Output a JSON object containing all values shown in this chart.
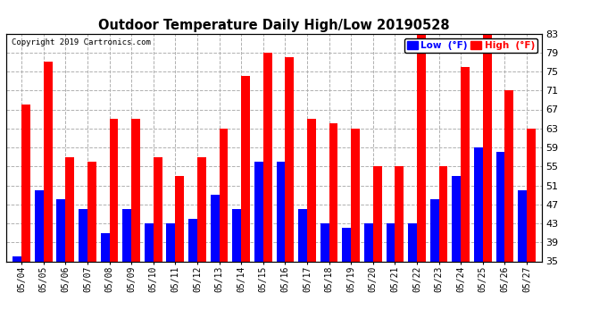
{
  "title": "Outdoor Temperature Daily High/Low 20190528",
  "copyright": "Copyright 2019 Cartronics.com",
  "dates": [
    "05/04",
    "05/05",
    "05/06",
    "05/07",
    "05/08",
    "05/09",
    "05/10",
    "05/11",
    "05/12",
    "05/13",
    "05/14",
    "05/15",
    "05/16",
    "05/17",
    "05/18",
    "05/19",
    "05/20",
    "05/21",
    "05/22",
    "05/23",
    "05/24",
    "05/25",
    "05/26",
    "05/27"
  ],
  "highs": [
    68,
    77,
    57,
    56,
    65,
    65,
    57,
    53,
    57,
    63,
    74,
    79,
    78,
    65,
    64,
    63,
    55,
    55,
    84,
    55,
    76,
    84,
    71,
    63
  ],
  "lows": [
    36,
    50,
    48,
    46,
    41,
    46,
    43,
    43,
    44,
    49,
    46,
    56,
    56,
    46,
    43,
    42,
    43,
    43,
    43,
    48,
    53,
    59,
    58,
    50
  ],
  "low_color": "#0000ff",
  "high_color": "#ff0000",
  "bg_color": "#ffffff",
  "grid_color": "#b0b0b0",
  "ylim_min": 35.0,
  "ylim_max": 83.0,
  "yticks": [
    35.0,
    39.0,
    43.0,
    47.0,
    51.0,
    55.0,
    59.0,
    63.0,
    67.0,
    71.0,
    75.0,
    79.0,
    83.0
  ],
  "bar_width": 0.4,
  "legend_low_label": "Low  (°F)",
  "legend_high_label": "High  (°F)"
}
